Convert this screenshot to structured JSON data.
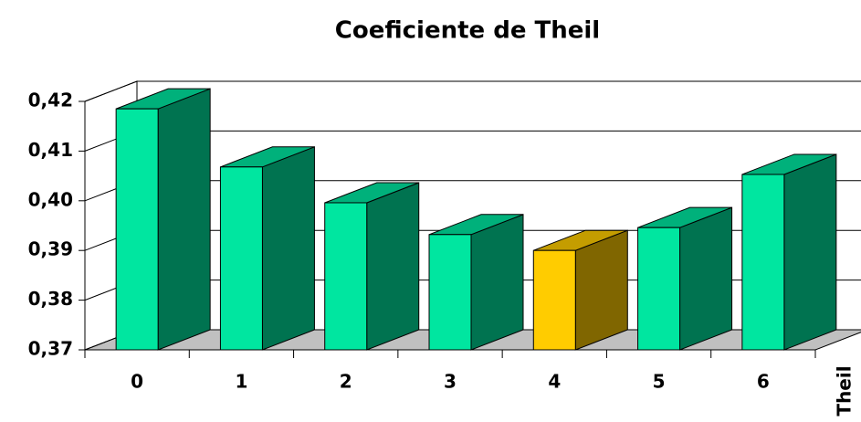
{
  "chart_data": {
    "type": "bar3d",
    "title": "Coeficiente de Theil",
    "categories": [
      "0",
      "1",
      "2",
      "3",
      "4",
      "5",
      "6"
    ],
    "series": [
      {
        "name": "Theil",
        "color": "#00e6a0",
        "values": [
          0.4185,
          0.4068,
          0.3996,
          0.3932,
          0.39,
          0.3946,
          0.4053
        ],
        "colors": [
          "#00e6a0",
          "#00e6a0",
          "#00e6a0",
          "#00e6a0",
          "#ffcc00",
          "#00e6a0",
          "#00e6a0"
        ]
      }
    ],
    "ylim": [
      0.37,
      0.42
    ],
    "yticks": [
      {
        "value": 0.37,
        "label": "0,37"
      },
      {
        "value": 0.38,
        "label": "0,38"
      },
      {
        "value": 0.39,
        "label": "0,39"
      },
      {
        "value": 0.4,
        "label": "0,40"
      },
      {
        "value": 0.41,
        "label": "0,41"
      },
      {
        "value": 0.42,
        "label": "0,42"
      }
    ],
    "grid": true
  }
}
